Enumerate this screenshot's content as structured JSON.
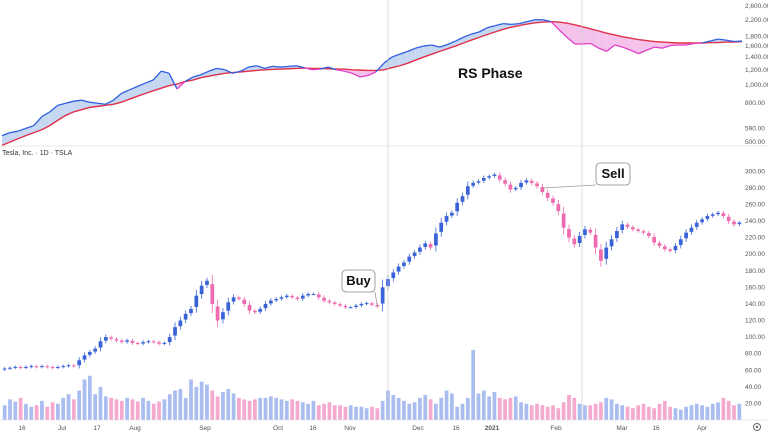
{
  "chart_data": [
    {
      "type": "area",
      "label": "RS Phase",
      "y_ticks": [
        "2,600.00",
        "2,200.00",
        "1,800.00",
        "1,600.00",
        "1,400.00",
        "1,200.00",
        "1,000.00",
        "800.00",
        "590.00",
        "500.00"
      ],
      "y_tick_values": [
        2600,
        2200,
        1800,
        1600,
        1400,
        1200,
        1000,
        800,
        590,
        500
      ],
      "ylim": [
        500,
        2600
      ],
      "y_scale": "log",
      "rs_line": [
        540,
        560,
        570,
        590,
        610,
        680,
        720,
        780,
        800,
        820,
        830,
        810,
        800,
        790,
        830,
        900,
        940,
        980,
        1020,
        1060,
        1180,
        1150,
        950,
        1040,
        1100,
        1130,
        1180,
        1220,
        1200,
        1150,
        1180,
        1240,
        1260,
        1220,
        1250,
        1240,
        1250,
        1260,
        1230,
        1200,
        1210,
        1240,
        1200,
        1180,
        1150,
        1100,
        1120,
        1170,
        1300,
        1400,
        1450,
        1500,
        1560,
        1600,
        1620,
        1580,
        1630,
        1700,
        1780,
        1850,
        1900,
        2000,
        2050,
        2100,
        2080,
        2100,
        2150,
        2200,
        2200,
        2150,
        1950,
        1780,
        1640,
        1640,
        1650,
        1560,
        1500,
        1620,
        1580,
        1520,
        1460,
        1520,
        1580,
        1560,
        1610,
        1620,
        1620,
        1650,
        1660,
        1700,
        1740,
        1720,
        1690,
        1700
      ],
      "ma_line": [
        480,
        500,
        520,
        540,
        560,
        580,
        610,
        650,
        690,
        720,
        740,
        760,
        770,
        780,
        790,
        810,
        840,
        870,
        900,
        930,
        960,
        990,
        1010,
        1040,
        1060,
        1090,
        1110,
        1130,
        1150,
        1160,
        1170,
        1180,
        1190,
        1200,
        1205,
        1210,
        1215,
        1220,
        1225,
        1220,
        1220,
        1215,
        1210,
        1210,
        1200,
        1195,
        1190,
        1190,
        1200,
        1230,
        1260,
        1300,
        1350,
        1400,
        1450,
        1500,
        1550,
        1600,
        1660,
        1720,
        1780,
        1840,
        1900,
        1960,
        2010,
        2050,
        2090,
        2120,
        2140,
        2150,
        2140,
        2110,
        2070,
        2020,
        1970,
        1920,
        1870,
        1830,
        1790,
        1760,
        1730,
        1710,
        1690,
        1680,
        1670,
        1660,
        1660,
        1660,
        1660,
        1670,
        1670,
        1680,
        1680,
        1690
      ]
    },
    {
      "type": "candlestick",
      "symbol": "Tesla, Inc. · 1D · TSLA",
      "y_ticks": [
        "300.00",
        "280.00",
        "260.00",
        "240.00",
        "220.00",
        "200.00",
        "180.00",
        "160.00",
        "140.00",
        "120.00",
        "100.00",
        "80.00",
        "60.00",
        "40.00",
        "20.00"
      ],
      "y_tick_values": [
        300,
        280,
        260,
        240,
        220,
        200,
        180,
        160,
        140,
        120,
        100,
        80,
        60,
        40,
        20
      ],
      "ylim": [
        0,
        310
      ],
      "x_labels": [
        "16",
        "Jul",
        "17",
        "Aug",
        "Sep",
        "Oct",
        "16",
        "Nov",
        "Dec",
        "16",
        "2021",
        "Feb",
        "Mar",
        "16",
        "Apr"
      ],
      "closes": [
        62,
        63,
        64,
        63,
        64,
        65,
        64,
        65,
        64,
        63,
        64,
        65,
        66,
        65,
        72,
        78,
        82,
        86,
        95,
        100,
        98,
        96,
        94,
        96,
        93,
        92,
        94,
        95,
        94,
        92,
        93,
        100,
        112,
        120,
        128,
        134,
        150,
        162,
        168,
        140,
        120,
        130,
        142,
        148,
        146,
        140,
        132,
        130,
        134,
        140,
        144,
        146,
        148,
        150,
        148,
        146,
        150,
        152,
        152,
        148,
        144,
        142,
        140,
        138,
        136,
        136,
        138,
        140,
        141,
        139,
        137,
        160,
        170,
        178,
        185,
        190,
        197,
        202,
        208,
        213,
        208,
        225,
        238,
        246,
        250,
        262,
        270,
        282,
        286,
        288,
        292,
        294,
        296,
        290,
        285,
        278,
        280,
        286,
        289,
        286,
        282,
        275,
        268,
        262,
        252,
        232,
        220,
        212,
        222,
        230,
        226,
        208,
        192,
        208,
        218,
        228,
        236,
        233,
        230,
        228,
        226,
        222,
        214,
        210,
        206,
        204,
        210,
        218,
        226,
        232,
        238,
        242,
        246,
        248,
        250,
        246,
        240,
        236,
        238
      ],
      "volume": [
        20,
        28,
        25,
        30,
        22,
        18,
        20,
        26,
        18,
        24,
        22,
        30,
        35,
        28,
        40,
        55,
        60,
        35,
        45,
        32,
        30,
        28,
        26,
        30,
        28,
        25,
        30,
        26,
        22,
        25,
        28,
        35,
        40,
        42,
        30,
        55,
        45,
        52,
        48,
        40,
        32,
        38,
        42,
        36,
        30,
        28,
        26,
        28,
        30,
        30,
        32,
        30,
        28,
        26,
        28,
        26,
        24,
        22,
        26,
        20,
        22,
        24,
        20,
        20,
        18,
        20,
        18,
        18,
        16,
        18,
        16,
        26,
        40,
        34,
        30,
        26,
        22,
        24,
        30,
        34,
        28,
        22,
        30,
        40,
        36,
        18,
        22,
        30,
        95,
        36,
        40,
        32,
        38,
        30,
        28,
        30,
        32,
        24,
        22,
        20,
        22,
        20,
        18,
        20,
        16,
        24,
        34,
        30,
        22,
        20,
        20,
        22,
        24,
        30,
        28,
        22,
        20,
        18,
        16,
        20,
        22,
        18,
        16,
        22,
        26,
        18,
        16,
        14,
        18,
        20,
        22,
        20,
        18,
        22,
        24,
        30,
        26,
        20,
        22
      ],
      "annotations": [
        {
          "label": "Buy",
          "index": 70
        },
        {
          "label": "Sell",
          "index": 101
        }
      ]
    }
  ]
}
